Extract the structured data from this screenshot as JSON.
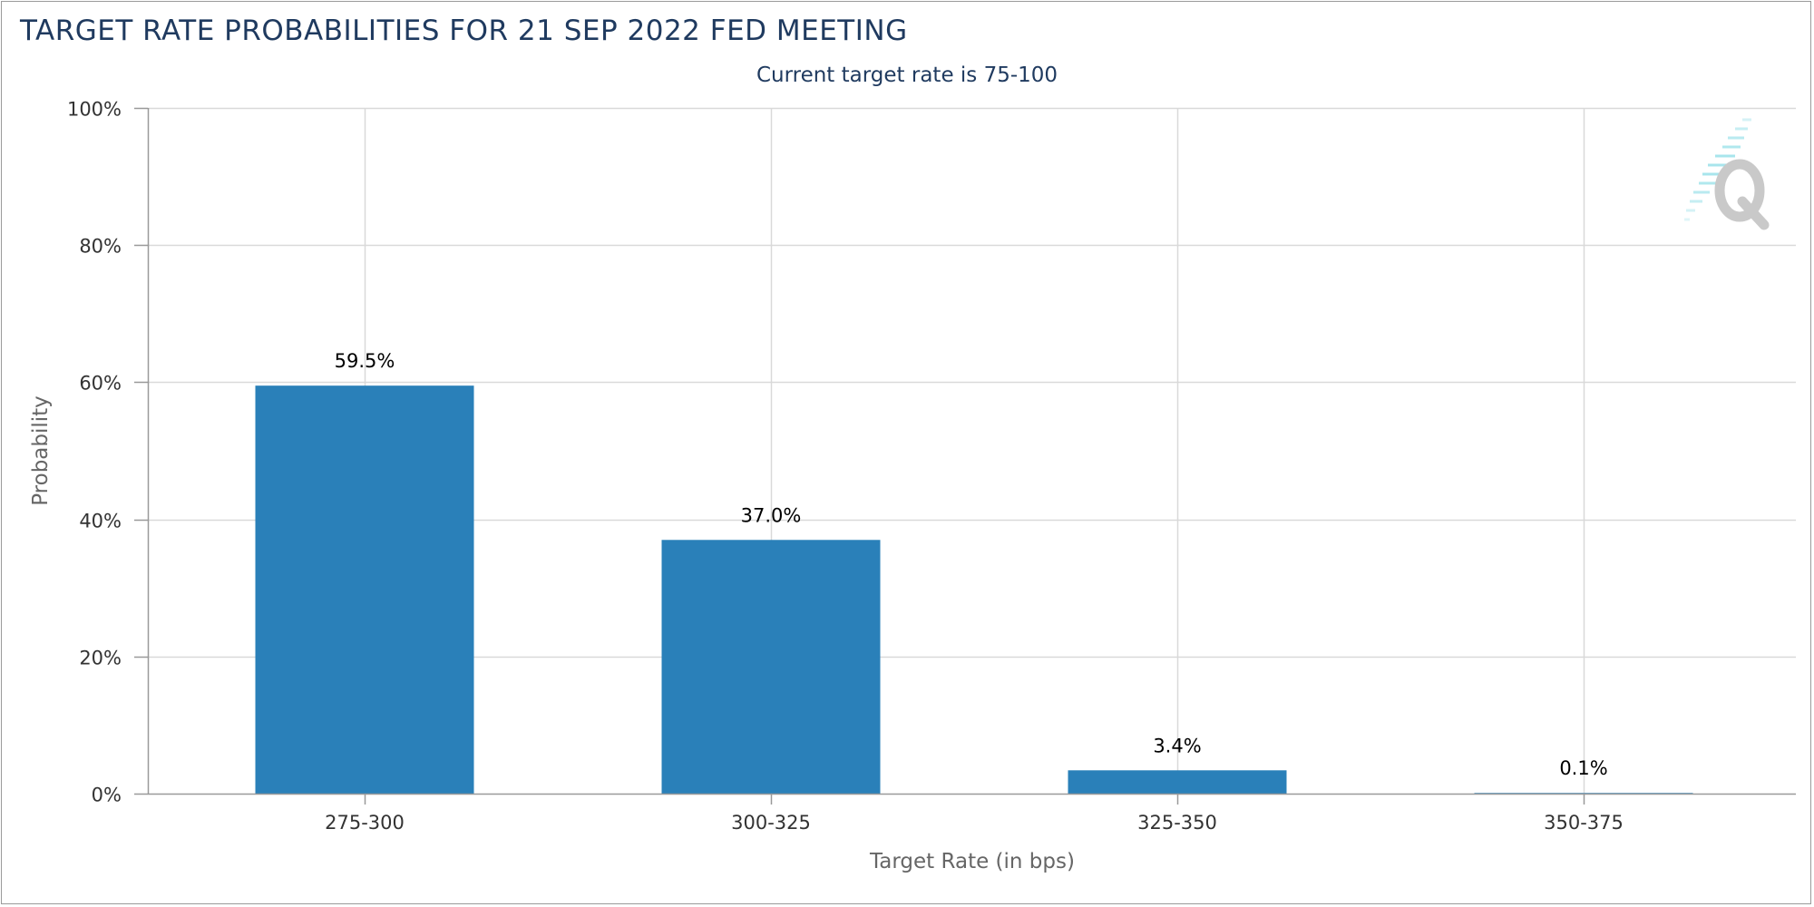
{
  "chart_data": {
    "type": "bar",
    "title": "TARGET RATE PROBABILITIES FOR 21 SEP 2022 FED MEETING",
    "subtitle": "Current target rate is 75-100",
    "xlabel": "Target Rate (in bps)",
    "ylabel": "Probability",
    "categories": [
      "275-300",
      "300-325",
      "325-350",
      "350-375"
    ],
    "values": [
      59.5,
      37.0,
      3.4,
      0.1
    ],
    "data_labels": [
      "59.5%",
      "37.0%",
      "3.4%",
      "0.1%"
    ],
    "ylim": [
      0,
      100
    ],
    "yticks": [
      0,
      20,
      40,
      60,
      80,
      100
    ],
    "ytick_labels": [
      "0%",
      "20%",
      "40%",
      "60%",
      "80%",
      "100%"
    ],
    "grid": true,
    "legend": "none",
    "colors": {
      "bar": "#2a80b9",
      "title": "#1f3a5f",
      "grid": "#d9d9d9",
      "axis": "#999999",
      "tick_text": "#333333",
      "axis_label": "#666666"
    }
  }
}
